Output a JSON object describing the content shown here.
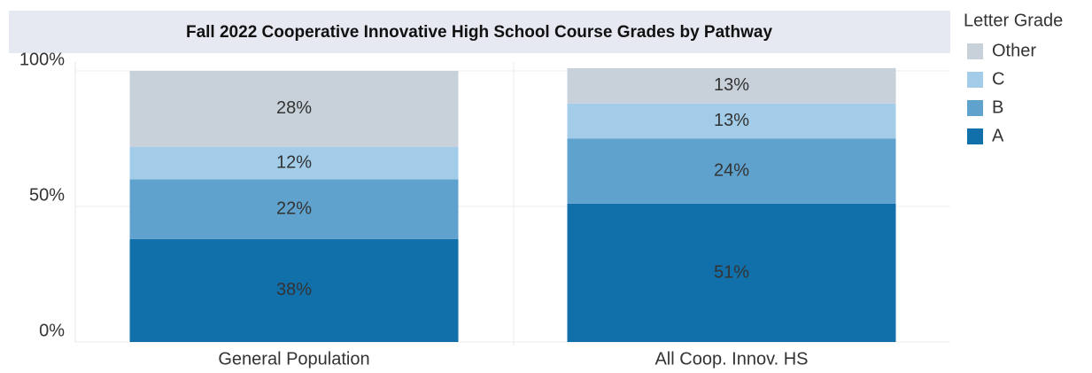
{
  "chart_data": {
    "type": "stacked_bar",
    "title": "Fall 2022 Cooperative Innovative High School Course Grades by Pathway",
    "categories": [
      "General Population",
      "All Coop. Innov. HS"
    ],
    "series": [
      {
        "name": "A",
        "color": "#1170aa",
        "values": [
          38,
          51
        ],
        "value_labels": [
          "38%",
          "51%"
        ]
      },
      {
        "name": "B",
        "color": "#5fa2ce",
        "values": [
          22,
          24
        ],
        "value_labels": [
          "22%",
          "24%"
        ]
      },
      {
        "name": "C",
        "color": "#a3cce9",
        "values": [
          12,
          13
        ],
        "value_labels": [
          "12%",
          "13%"
        ]
      },
      {
        "name": "Other",
        "color": "#c8d0d9",
        "values": [
          28,
          13
        ],
        "value_labels": [
          "28%",
          "13%"
        ]
      }
    ],
    "legend_title": "Letter Grade",
    "legend": "right",
    "ylim": [
      0,
      100
    ],
    "yticks": [
      {
        "value": 0,
        "label": "0%"
      },
      {
        "value": 50,
        "label": "50%"
      },
      {
        "value": 100,
        "label": "100%"
      }
    ],
    "grid": true
  }
}
